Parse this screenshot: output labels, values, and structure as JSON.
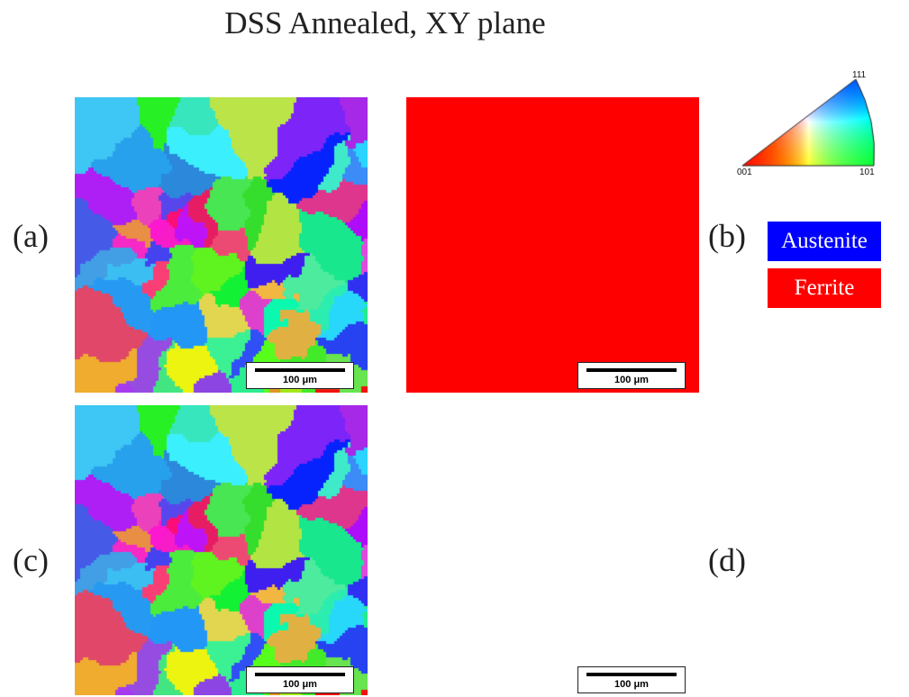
{
  "figure": {
    "title": "DSS Annealed, XY plane"
  },
  "panels": [
    {
      "id": "a",
      "label": "(a)",
      "kind": "ipf-all",
      "scale_label": "100 μm"
    },
    {
      "id": "b",
      "label": "(b)",
      "kind": "phase",
      "scale_label": "100 μm"
    },
    {
      "id": "c",
      "label": "(c)",
      "kind": "ipf-ferrite",
      "scale_label": "100 μm"
    },
    {
      "id": "d",
      "label": "(d)",
      "kind": "ipf-austenite",
      "scale_label": "100 μm"
    }
  ],
  "ipf_key": {
    "top_label": "111",
    "left_label": "001",
    "right_label": "101"
  },
  "phase_legend": [
    {
      "name": "Austenite",
      "color": "#0000ff"
    },
    {
      "name": "Ferrite",
      "color": "#ff0000"
    }
  ],
  "colors": {
    "austenite": "#0000ff",
    "ferrite": "#ff0000",
    "unindexed": "#ffffff"
  }
}
